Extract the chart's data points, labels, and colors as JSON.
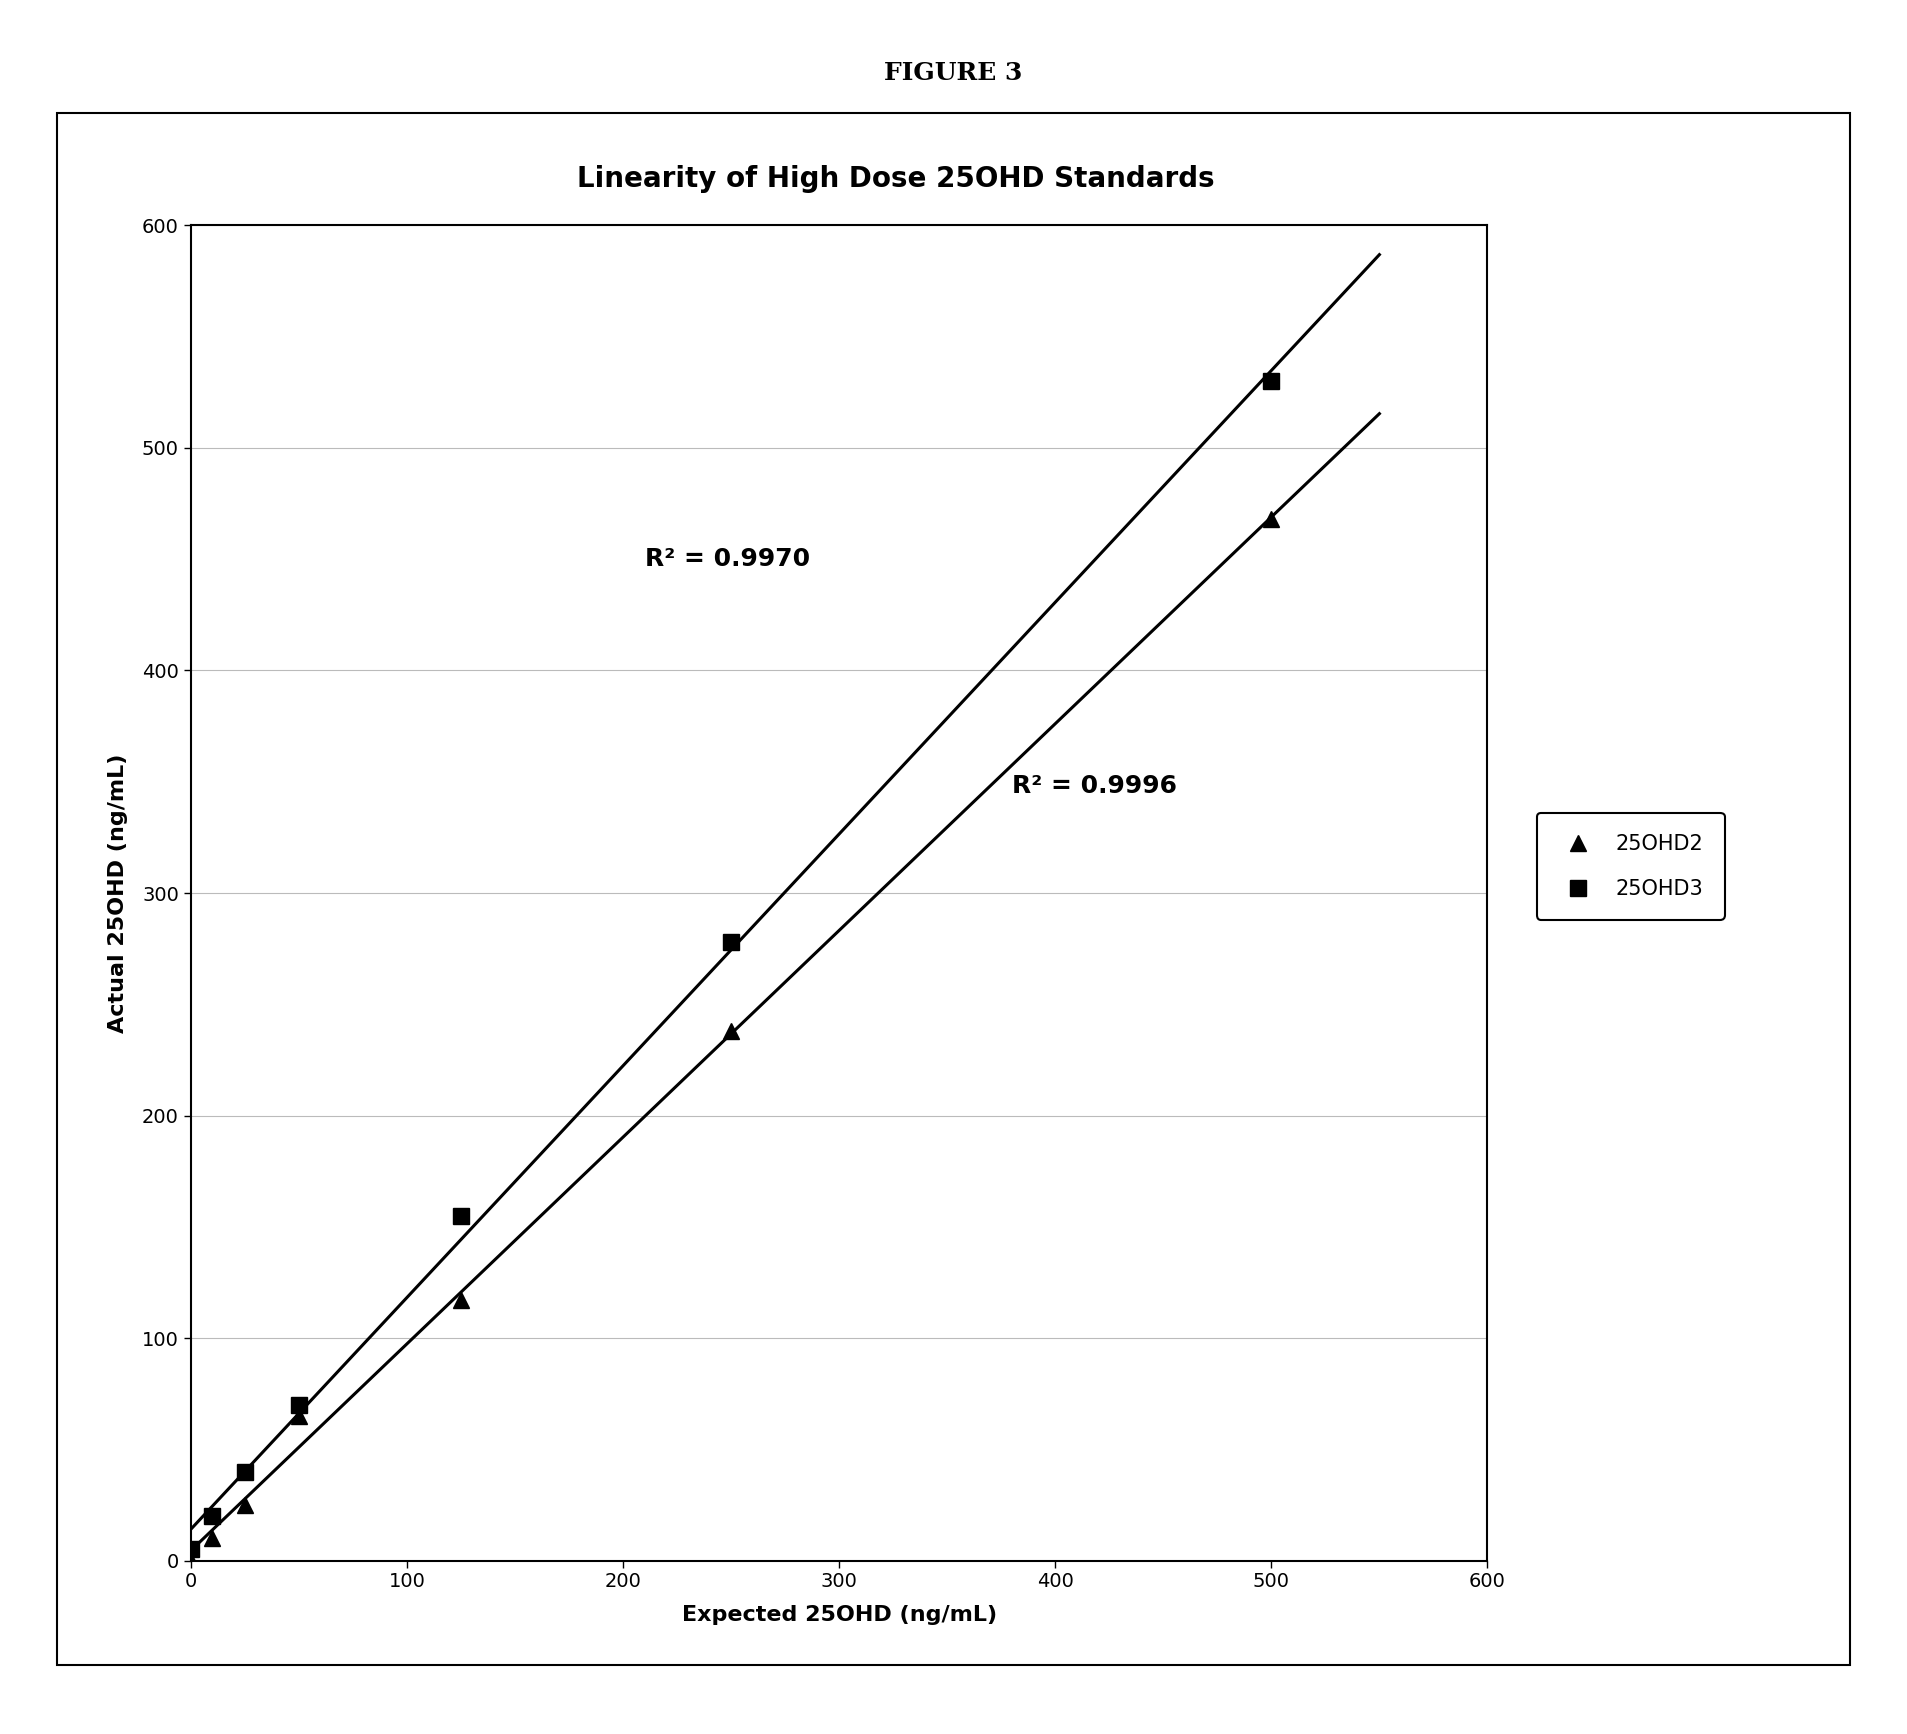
{
  "title_figure": "FIGURE 3",
  "title_chart": "Linearity of High Dose 25OHD Standards",
  "xlabel": "Expected 25OHD (ng/mL)",
  "ylabel": "Actual 25OHD (ng/mL)",
  "xlim": [
    0,
    600
  ],
  "ylim": [
    0,
    600
  ],
  "xticks": [
    0,
    100,
    200,
    300,
    400,
    500,
    600
  ],
  "yticks": [
    0,
    100,
    200,
    300,
    400,
    500,
    600
  ],
  "series_25OHD2": {
    "x": [
      0,
      10,
      25,
      50,
      125,
      250,
      500
    ],
    "y": [
      0,
      10,
      25,
      65,
      117,
      238,
      468
    ],
    "label": "25OHD2",
    "marker": "^",
    "color": "#000000",
    "r2": "0.9970",
    "r2_x": 210,
    "r2_y": 450
  },
  "series_25OHD3": {
    "x": [
      0,
      10,
      25,
      50,
      125,
      250,
      500
    ],
    "y": [
      5,
      20,
      40,
      70,
      155,
      278,
      530
    ],
    "label": "25OHD3",
    "marker": "s",
    "color": "#000000",
    "r2": "0.9996",
    "r2_x": 380,
    "r2_y": 348
  },
  "line_color": "#000000",
  "background_color": "#ffffff",
  "figure_title_fontsize": 18,
  "chart_title_fontsize": 20,
  "axis_label_fontsize": 16,
  "tick_fontsize": 14,
  "annotation_fontsize": 18,
  "legend_fontsize": 15,
  "marker_size": 11
}
